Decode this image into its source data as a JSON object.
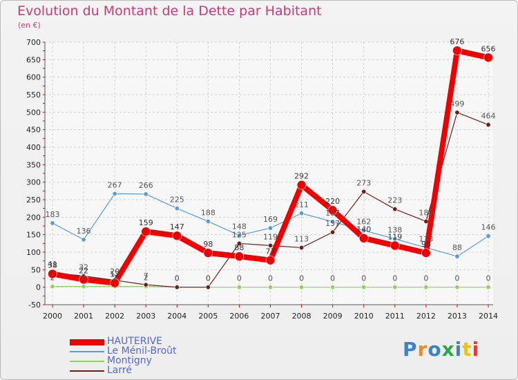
{
  "title": "Evolution du Montant de la Dette par Habitant",
  "unit": "(en €)",
  "logo": {
    "text": "Proxiti",
    "colors": [
      "#3b83c9",
      "#f08a1c",
      "#3b83c9",
      "#2aa84a",
      "#3b83c9",
      "#e7c51a",
      "#e23b3b"
    ]
  },
  "chart_data": {
    "type": "line",
    "x": [
      "2000",
      "2001",
      "2002",
      "2003",
      "2004",
      "2005",
      "2006",
      "2007",
      "2008",
      "2009",
      "2010",
      "2011",
      "2012",
      "2013",
      "2014"
    ],
    "ylim": [
      -50,
      700
    ],
    "yticks": [
      -50,
      0,
      50,
      100,
      150,
      200,
      250,
      300,
      350,
      400,
      450,
      500,
      550,
      600,
      650,
      700
    ],
    "grid": true,
    "legend_position": "bottom-left",
    "series": [
      {
        "name": "Le Ménil-Broût",
        "color": "#5b9bd5",
        "values": [
          183,
          136,
          267,
          266,
          225,
          188,
          148,
          169,
          211,
          187,
          162,
          138,
          113,
          88,
          146
        ],
        "labels": [
          "183",
          "136",
          "267",
          "266",
          "225",
          "188",
          "148",
          "169",
          "211",
          "187",
          "162",
          "138",
          "113",
          "88",
          "146"
        ]
      },
      {
        "name": "Montigny",
        "color": "#8fd35a",
        "values": [
          2,
          2,
          2,
          2,
          0,
          0,
          0,
          0,
          0,
          0,
          0,
          0,
          0,
          0,
          0
        ],
        "labels": [
          "2",
          "2",
          "2",
          "2",
          "0",
          "0",
          "0",
          "0",
          "0",
          "0",
          "0",
          "0",
          "0",
          "0",
          "0"
        ]
      },
      {
        "name": "Larré",
        "color": "#6b1c1c",
        "values": [
          41,
          32,
          20,
          7,
          0,
          0,
          125,
          119,
          113,
          157,
          273,
          223,
          188,
          499,
          464
        ],
        "labels": [
          "41",
          "32",
          "20",
          "7",
          "0",
          "0",
          "125",
          "119",
          "113",
          "157",
          "273",
          "223",
          "188",
          "499",
          "464"
        ]
      },
      {
        "name": "HAUTERIVE",
        "color": "#ee0000",
        "values": [
          38,
          22,
          12,
          159,
          147,
          98,
          88,
          77,
          292,
          220,
          140,
          119,
          98,
          676,
          656
        ],
        "labels": [
          "38",
          "22",
          "12",
          "159",
          "147",
          "98",
          "88",
          "77",
          "292",
          "220",
          "140",
          "119",
          "98",
          "676",
          "656"
        ]
      }
    ],
    "legend_order": [
      "HAUTERIVE",
      "Le Ménil-Broût",
      "Montigny",
      "Larré"
    ]
  }
}
